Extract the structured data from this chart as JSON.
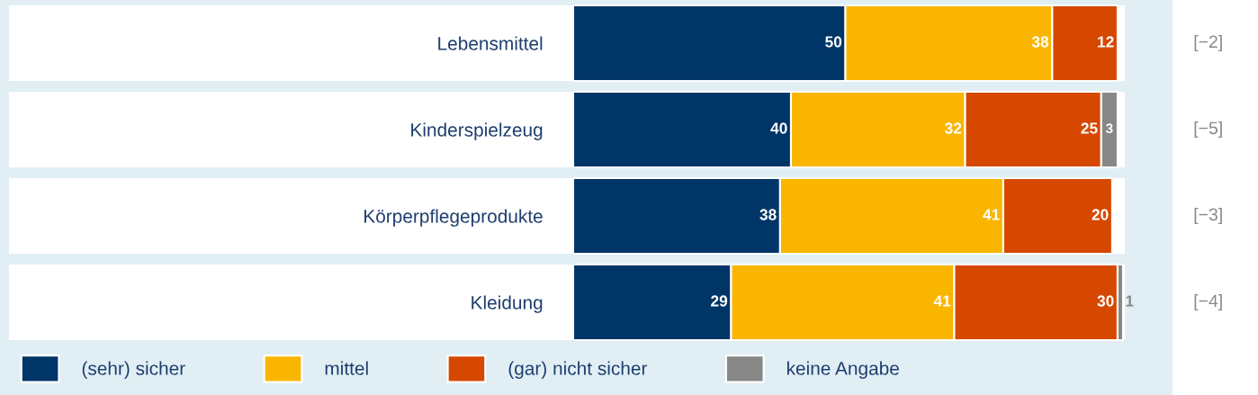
{
  "chart_data": {
    "type": "bar",
    "orientation": "horizontal",
    "stacked": true,
    "data_labels": true,
    "legend": "bottom",
    "grid": false,
    "tick_labels": "y",
    "categories": [
      "Lebensmittel",
      "Kinderspielzeug",
      "Körperpflegeprodukte",
      "Kleidung"
    ],
    "series": [
      {
        "name": "(sehr) sicher",
        "color": "#003567",
        "values": [
          50,
          40,
          38,
          29
        ]
      },
      {
        "name": "mittel",
        "color": "#f9b500",
        "values": [
          38,
          32,
          41,
          41
        ]
      },
      {
        "name": "(gar) nicht sicher",
        "color": "#d64800",
        "values": [
          12,
          25,
          20,
          30
        ]
      },
      {
        "name": "keine Angabe",
        "color": "#878787",
        "values": [
          null,
          3,
          null,
          1
        ]
      }
    ],
    "annotations": [
      "[−2]",
      "[−5]",
      "[−3]",
      "[−4]"
    ]
  }
}
